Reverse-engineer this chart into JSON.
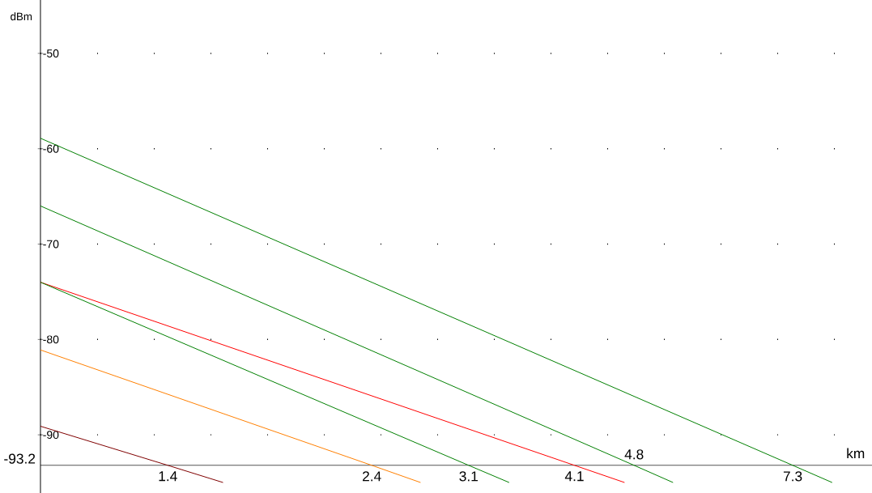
{
  "chart_data": {
    "type": "line",
    "xlabel": "km",
    "ylabel": "dBm",
    "log": "x",
    "xlim": [
      1,
      9
    ],
    "ylim": [
      -96.1,
      -44.4
    ],
    "xticks": [
      1.4,
      2.4,
      3.1,
      4.1,
      7.3
    ],
    "yticks": [
      -90,
      -80,
      -70,
      -60,
      -50
    ],
    "grid": "y",
    "annotations": [
      "-93.2",
      {
        "text": "4.8",
        "x": 4.8,
        "y": -93.2
      }
    ],
    "series": [
      {
        "color": "#008000",
        "x": [
          1,
          7.3,
          8.1
        ],
        "values": [
          -58.9,
          -93.2,
          -95.0
        ]
      },
      {
        "color": "#008000",
        "x": [
          1,
          4.8,
          5.32
        ],
        "values": [
          -66.0,
          -93.2,
          -95.0
        ]
      },
      {
        "color": "#ff0000",
        "x": [
          1,
          4.1,
          4.68
        ],
        "values": [
          -74.0,
          -93.2,
          -95.0
        ]
      },
      {
        "color": "#008000",
        "x": [
          1,
          3.1,
          3.45
        ],
        "values": [
          -74.0,
          -93.2,
          -95.0
        ]
      },
      {
        "color": "#ff8000",
        "x": [
          1,
          2.4,
          2.73
        ],
        "values": [
          -81.1,
          -93.2,
          -95.0
        ]
      },
      {
        "color": "#800000",
        "x": [
          1,
          1.4,
          1.62
        ],
        "values": [
          -89.1,
          -93.2,
          -95.0
        ]
      }
    ]
  }
}
